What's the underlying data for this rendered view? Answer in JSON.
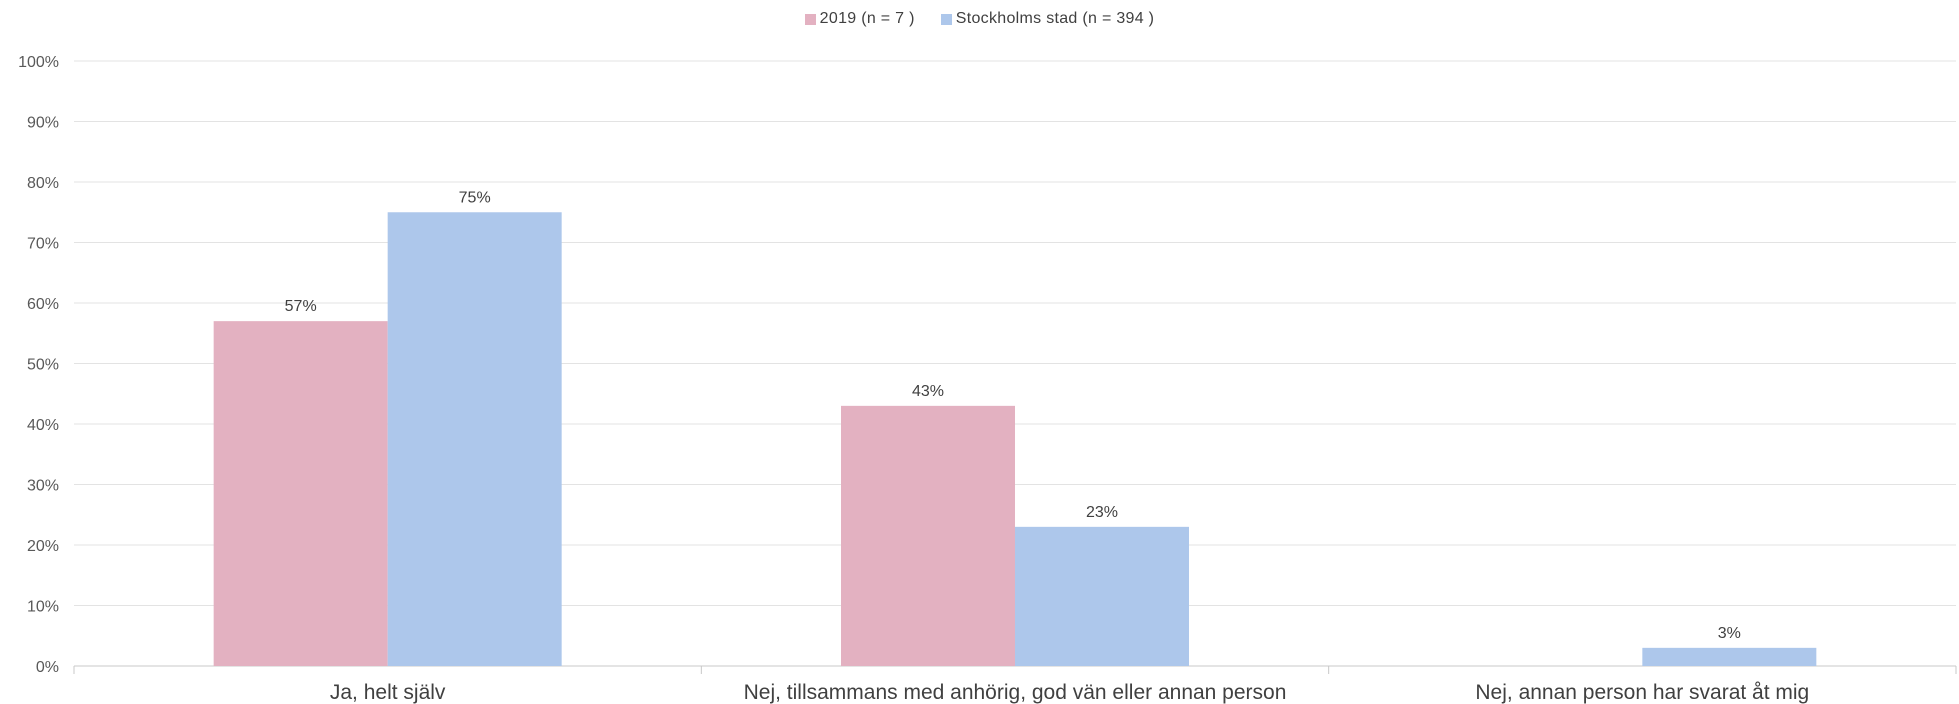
{
  "chart_data": {
    "type": "bar",
    "categories": [
      "Ja, helt själv",
      "Nej, tillsammans med anhörig, god vän eller annan person",
      "Nej, annan person har svarat åt mig"
    ],
    "series": [
      {
        "name": "2019 (n = 7 )",
        "color": "#e3b1c1",
        "values": [
          57,
          43,
          0
        ],
        "labels": [
          "57%",
          "43%",
          null
        ]
      },
      {
        "name": "Stockholms stad (n = 394 )",
        "color": "#adc7eb",
        "values": [
          75,
          23,
          3
        ],
        "labels": [
          "75%",
          "23%",
          "3%"
        ]
      }
    ],
    "ylim": [
      0,
      100
    ],
    "yticks": [
      "0%",
      "10%",
      "20%",
      "30%",
      "40%",
      "50%",
      "60%",
      "70%",
      "80%",
      "90%",
      "100%"
    ],
    "grid": true,
    "legend_position": "top-center"
  }
}
